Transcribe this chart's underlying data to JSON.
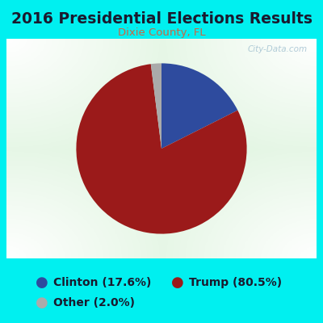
{
  "title": "2016 Presidential Elections Results",
  "subtitle": "Dixie County, FL",
  "title_color": "#1a1a2e",
  "title_fontsize": 13.5,
  "subtitle_fontsize": 9.5,
  "subtitle_color": "#cc6644",
  "background_color": "#00f0f0",
  "chart_bg_color": "#e8f5e0",
  "labels": [
    "Clinton",
    "Trump",
    "Other"
  ],
  "values": [
    17.6,
    80.5,
    2.0
  ],
  "colors": [
    "#2e4b9e",
    "#9b1a1a",
    "#aaaaaa"
  ],
  "legend_labels": [
    "Clinton (17.6%)",
    "Trump (80.5%)",
    "Other (2.0%)"
  ],
  "watermark": "City-Data.com",
  "startangle": 90,
  "legend_text_color": "#1a1a2e",
  "legend_fontsize": 10
}
